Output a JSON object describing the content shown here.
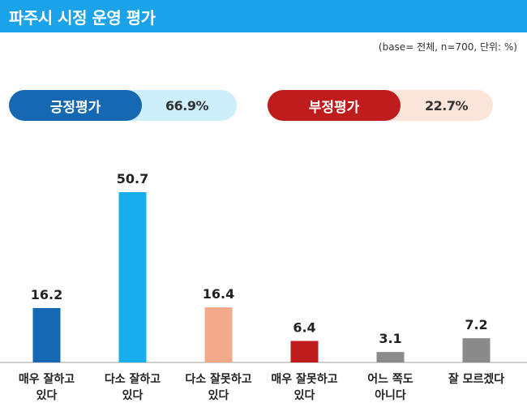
{
  "header": {
    "title": "파주시 시정 운영 평가"
  },
  "note": "(base= 전체, n=700, 단위: %)",
  "summary": {
    "positive": {
      "label": "긍정평가",
      "value": "66.9%"
    },
    "negative": {
      "label": "부정평가",
      "value": "22.7%"
    }
  },
  "colors": {
    "title_bg": "#1aa3e8",
    "positive_dark": "#1668b2",
    "positive_light": "#cdeefb",
    "negative_dark": "#bf1d1d",
    "negative_light": "#fbe4d9"
  },
  "chart_data": {
    "type": "bar",
    "categories": [
      [
        "매우 잘하고",
        "있다"
      ],
      [
        "다소 잘하고",
        "있다"
      ],
      [
        "다소 잘못하고",
        "있다"
      ],
      [
        "매우 잘못하고",
        "있다"
      ],
      [
        "어느 쪽도",
        "아니다"
      ],
      [
        "잘 모르겠다"
      ]
    ],
    "values": [
      16.2,
      50.7,
      16.4,
      6.4,
      3.1,
      7.2
    ],
    "value_labels": [
      "16.2",
      "50.7",
      "16.4",
      "6.4",
      "3.1",
      "7.2"
    ],
    "colors": [
      "#1668b2",
      "#18aeee",
      "#f2aa8a",
      "#bf1d1d",
      "#8a8a8a",
      "#8a8a8a"
    ],
    "ylim": [
      0,
      50.7
    ],
    "grid": false,
    "legend": "none"
  }
}
